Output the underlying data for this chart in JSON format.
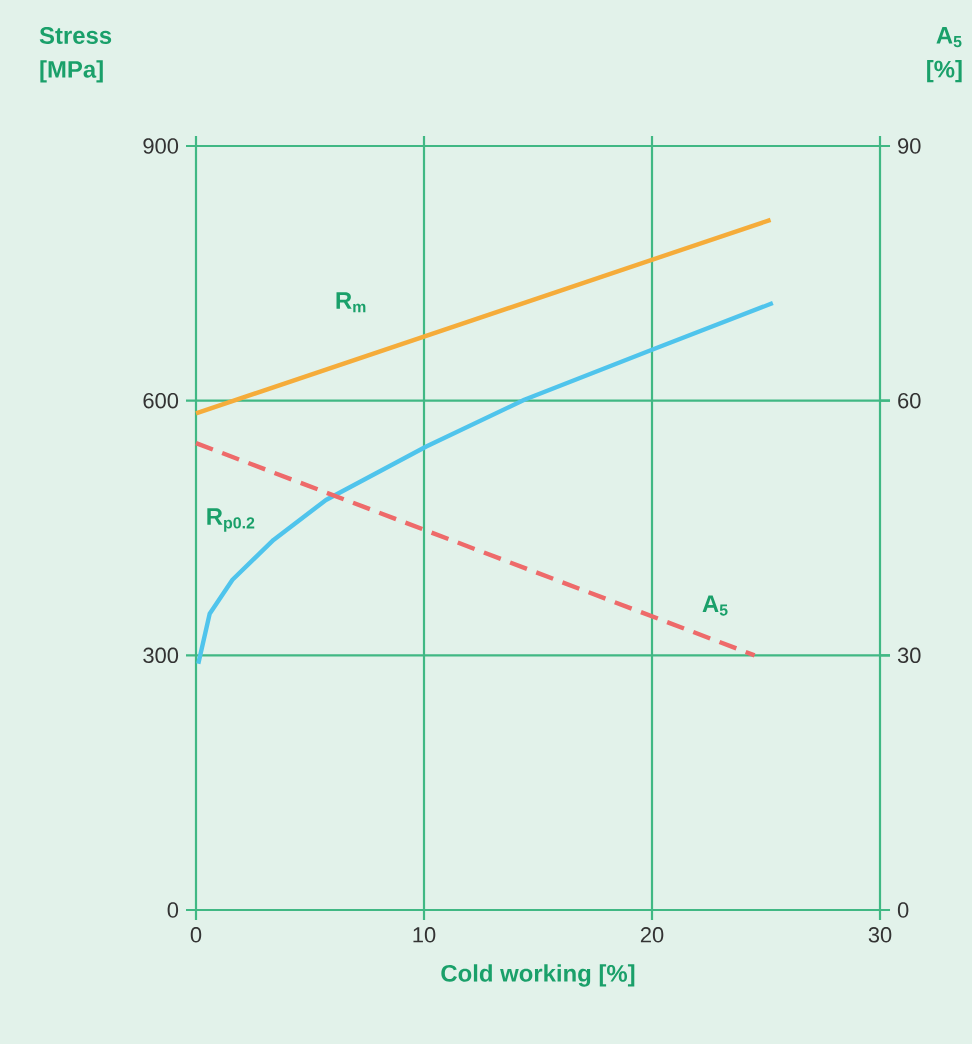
{
  "chart_data": {
    "type": "line",
    "xlabel": "Cold working [%]",
    "ylabel": "Stress [MPa]",
    "y2label": "A$_{5}$ [%]",
    "xlim": [
      0,
      30
    ],
    "xticks": [
      0,
      10,
      20,
      30
    ],
    "ylim": [
      0,
      900
    ],
    "yticks": [
      0,
      300,
      600,
      900
    ],
    "y2lim": [
      0,
      90
    ],
    "y2ticks": [
      0,
      30,
      60,
      90
    ],
    "grid": true,
    "series": [
      {
        "name": "R$_{m}$",
        "color": "#f5ac3a",
        "line_style": "solid",
        "x": [
          0,
          25.2
        ],
        "values": [
          585,
          813
        ]
      },
      {
        "name": "R$_{p0.2}$",
        "color": "#4fc4ec",
        "line_style": "solid",
        "x": [
          0.1,
          0.6,
          1.6,
          3.4,
          5.7,
          10.1,
          14.4,
          20,
          25.3
        ],
        "values": [
          290,
          349,
          389,
          436,
          483,
          546,
          601,
          660,
          715
        ]
      },
      {
        "name": "A$_{5}$",
        "color": "#ee6a6a",
        "line_style": "dashed",
        "axis": "y2",
        "x": [
          0,
          24.5
        ],
        "values": [
          55,
          30
        ]
      }
    ]
  }
}
